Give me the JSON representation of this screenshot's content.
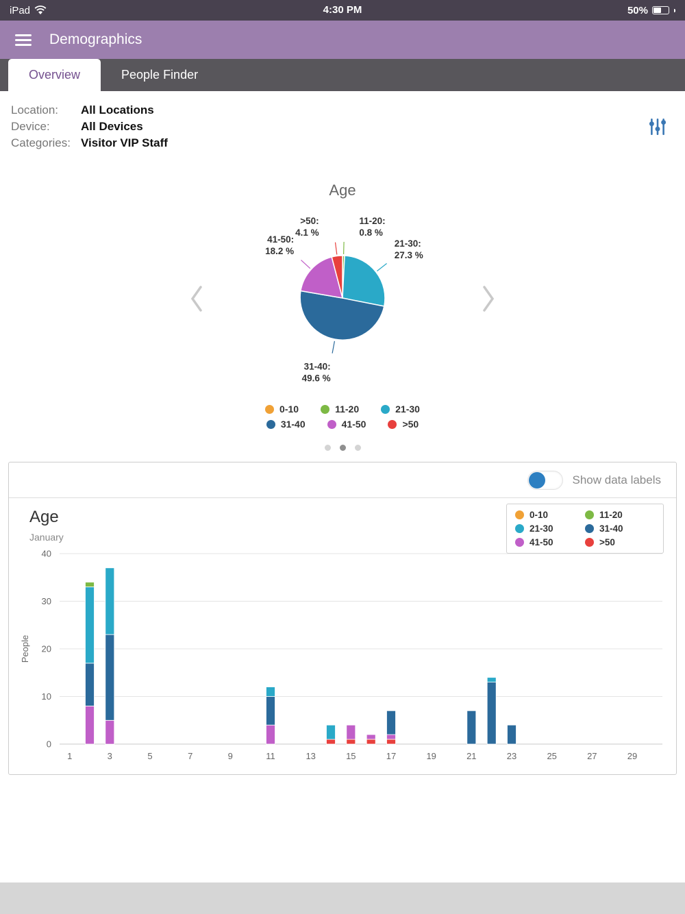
{
  "status_bar": {
    "device": "iPad",
    "time": "4:30 PM",
    "battery": "50%"
  },
  "nav": {
    "title": "Demographics"
  },
  "tabs": [
    {
      "label": "Overview",
      "active": true
    },
    {
      "label": "People Finder",
      "active": false
    }
  ],
  "filters": {
    "rows": [
      {
        "label": "Location:",
        "value": "All Locations"
      },
      {
        "label": "Device:",
        "value": "All Devices"
      },
      {
        "label": "Categories:",
        "value": "Visitor VIP Staff"
      }
    ]
  },
  "toggle": {
    "label": "Show data labels",
    "on": false
  },
  "carousel": {
    "count": 3,
    "active": 1
  },
  "colors": {
    "nav_bar": "#9c7fae",
    "status_bar": "#48414f",
    "tab_bar": "#58565b",
    "tab_active_text": "#74508f",
    "toggle_knob": "#2d7fc1",
    "filter_icon": "#3a77b4",
    "categories": {
      "0-10": "#f0a136",
      "11-20": "#7db944",
      "21-30": "#2aa9c8",
      "31-40": "#2b6a9b",
      "41-50": "#c05fc8",
      ">50": "#e8403d"
    }
  },
  "chart_data": [
    {
      "type": "pie",
      "title": "Age",
      "categories": [
        "0-10",
        "11-20",
        "21-30",
        "31-40",
        "41-50",
        ">50"
      ],
      "values": [
        0,
        0.8,
        27.3,
        49.6,
        18.2,
        4.1
      ],
      "unit": "%",
      "legend_position": "bottom"
    },
    {
      "type": "bar",
      "stacked": true,
      "title": "Age",
      "subtitle": "January",
      "xlabel": "",
      "ylabel": "People",
      "ylim": [
        0,
        40
      ],
      "yticks": [
        0,
        10,
        20,
        30,
        40
      ],
      "xticks": [
        1,
        3,
        5,
        7,
        9,
        11,
        13,
        15,
        17,
        19,
        21,
        23,
        25,
        27,
        29
      ],
      "x_range": [
        1,
        30
      ],
      "stack_order": [
        ">50",
        "41-50",
        "31-40",
        "21-30",
        "11-20",
        "0-10"
      ],
      "series": [
        {
          "name": "0-10",
          "points": {}
        },
        {
          "name": "11-20",
          "points": {
            "2": 1
          }
        },
        {
          "name": "21-30",
          "points": {
            "2": 16,
            "3": 14,
            "11": 2,
            "14": 3,
            "22": 1
          }
        },
        {
          "name": "31-40",
          "points": {
            "2": 9,
            "3": 18,
            "11": 6,
            "17": 5,
            "21": 7,
            "22": 13,
            "23": 4
          }
        },
        {
          "name": "41-50",
          "points": {
            "2": 8,
            "3": 5,
            "11": 4,
            "15": 3,
            "16": 1,
            "17": 1
          }
        },
        {
          "name": ">50",
          "points": {
            "14": 1,
            "15": 1,
            "16": 1,
            "17": 1
          }
        }
      ],
      "legend_position": "top-right"
    }
  ]
}
